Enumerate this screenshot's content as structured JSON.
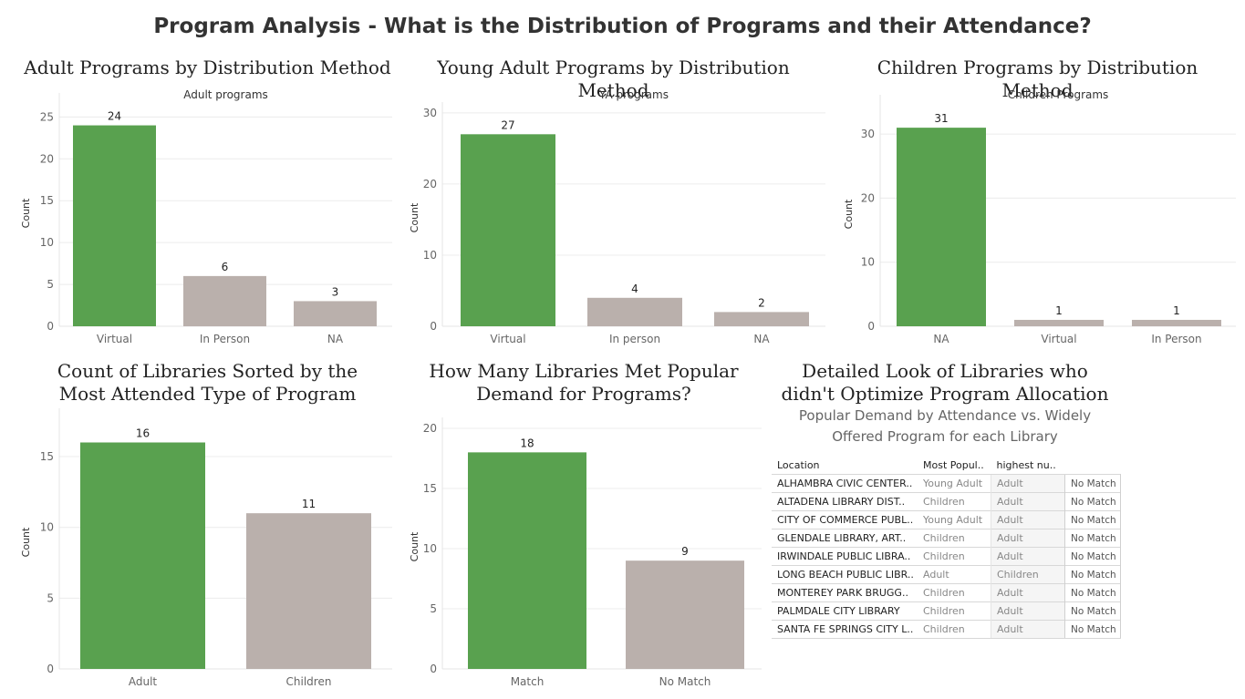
{
  "page": {
    "title": "Program Analysis - What is the Distribution of Programs and their Attendance?"
  },
  "colors": {
    "green": "#59a14f",
    "gray": "#bab0ac"
  },
  "chart_data": [
    {
      "type": "bar",
      "title": "Adult Programs by Distribution Method",
      "subtitle": "Adult programs",
      "ylabel": "Count",
      "categories": [
        "Virtual",
        "In Person",
        "NA"
      ],
      "values": [
        24,
        6,
        3
      ],
      "bar_colors": [
        "#59a14f",
        "#bab0ac",
        "#bab0ac"
      ],
      "ylim": [
        0,
        27
      ],
      "yticks": [
        0,
        5,
        10,
        15,
        20,
        25
      ],
      "grid": true
    },
    {
      "type": "bar",
      "title": "Young Adult Programs by Distribution Method",
      "subtitle": "YA programs",
      "ylabel": "Count",
      "categories": [
        "Virtual",
        "In person",
        "NA"
      ],
      "values": [
        27,
        4,
        2
      ],
      "bar_colors": [
        "#59a14f",
        "#bab0ac",
        "#bab0ac"
      ],
      "ylim": [
        0,
        30.5
      ],
      "yticks": [
        0,
        10,
        20,
        30
      ],
      "grid": true
    },
    {
      "type": "bar",
      "title": "Children Programs by Distribution Method",
      "subtitle": "Children Programs",
      "ylabel": "Count",
      "categories": [
        "NA",
        "Virtual",
        "In Person"
      ],
      "values": [
        31,
        1,
        1
      ],
      "bar_colors": [
        "#59a14f",
        "#bab0ac",
        "#bab0ac"
      ],
      "ylim": [
        0,
        35
      ],
      "yticks": [
        0,
        10,
        20,
        30
      ],
      "grid": true
    },
    {
      "type": "bar",
      "title": "Count of Libraries Sorted by the Most Attended Type of Program",
      "ylabel": "Count",
      "categories": [
        "Adult",
        "Children"
      ],
      "values": [
        16,
        11
      ],
      "bar_colors": [
        "#59a14f",
        "#bab0ac"
      ],
      "ylim": [
        0,
        17.9
      ],
      "yticks": [
        0,
        5,
        10,
        15
      ],
      "grid": true
    },
    {
      "type": "bar",
      "title": "How Many Libraries Met Popular Demand for Programs?",
      "ylabel": "Count",
      "categories": [
        "Match",
        "No Match"
      ],
      "values": [
        18,
        9
      ],
      "bar_colors": [
        "#59a14f",
        "#bab0ac"
      ],
      "ylim": [
        0,
        20.3
      ],
      "yticks": [
        0,
        5,
        10,
        15,
        20
      ],
      "grid": true
    },
    {
      "type": "table",
      "title": "Detailed Look of Libraries who didn't Optimize Program Allocation",
      "subtitle": "Popular Demand by Attendance vs. Widely Offered Program for each Library",
      "columns": [
        "Location",
        "Most Popul..",
        "highest nu..",
        ""
      ],
      "rows": [
        [
          "ALHAMBRA CIVIC CENTER..",
          "Young Adult",
          "Adult",
          "No Match"
        ],
        [
          "ALTADENA LIBRARY DIST..",
          "Children",
          "Adult",
          "No Match"
        ],
        [
          "CITY OF COMMERCE PUBL..",
          "Young Adult",
          "Adult",
          "No Match"
        ],
        [
          "GLENDALE LIBRARY, ART..",
          "Children",
          "Adult",
          "No Match"
        ],
        [
          "IRWINDALE PUBLIC LIBRA..",
          "Children",
          "Adult",
          "No Match"
        ],
        [
          "LONG BEACH PUBLIC LIBR..",
          "Adult",
          "Children",
          "No Match"
        ],
        [
          "MONTEREY PARK BRUGG..",
          "Children",
          "Adult",
          "No Match"
        ],
        [
          "PALMDALE CITY LIBRARY",
          "Children",
          "Adult",
          "No Match"
        ],
        [
          "SANTA FE SPRINGS CITY L..",
          "Children",
          "Adult",
          "No Match"
        ]
      ]
    }
  ]
}
